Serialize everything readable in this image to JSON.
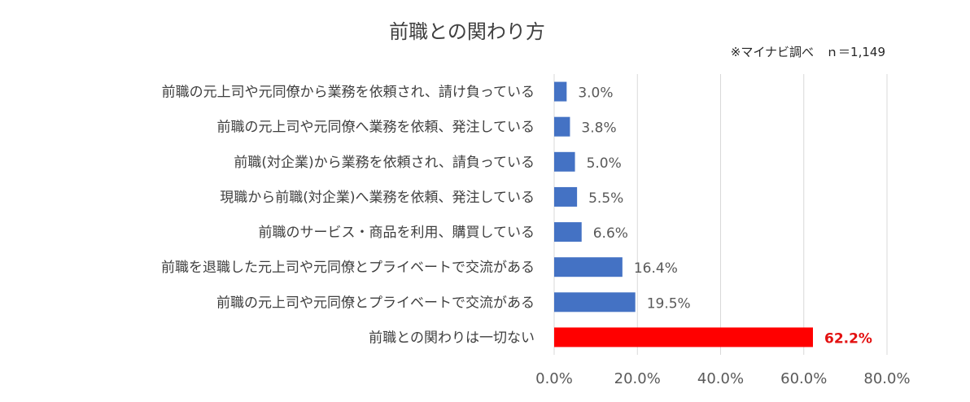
{
  "chart_data": {
    "type": "bar",
    "orientation": "horizontal",
    "title": "前職との関わり方",
    "note": "※マイナビ調べ　ｎ＝1,149",
    "categories": [
      "前職の元上司や元同僚から業務を依頼され、請け負っている",
      "前職の元上司や元同僚へ業務を依頼、発注している",
      "前職(対企業)から業務を依頼され、請負っている",
      "現職から前職(対企業)へ業務を依頼、発注している",
      "前職のサービス・商品を利用、購買している",
      "前職を退職した元上司や元同僚とプライベートで交流がある",
      "前職の元上司や元同僚とプライベートで交流がある",
      "前職との関わりは一切ない"
    ],
    "values": [
      3.0,
      3.8,
      5.0,
      5.5,
      6.6,
      16.4,
      19.5,
      62.2
    ],
    "value_labels": [
      "3.0%",
      "3.8%",
      "5.0%",
      "5.5%",
      "6.6%",
      "16.4%",
      "19.5%",
      "62.2%"
    ],
    "highlight_index": 7,
    "xlim": [
      0,
      80
    ],
    "xticks": [
      "0.0%",
      "20.0%",
      "40.0%",
      "60.0%",
      "80.0%"
    ],
    "grid": true,
    "colors": {
      "bar": "#4472c4",
      "highlight": "#ff0000"
    }
  }
}
